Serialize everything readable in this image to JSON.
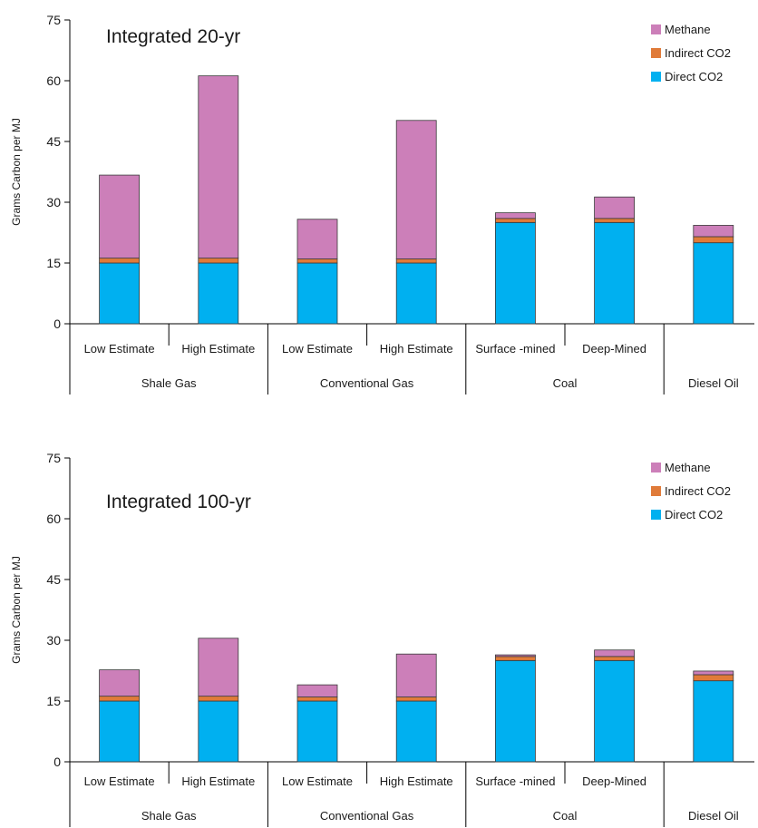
{
  "chart_data": [
    {
      "type": "bar",
      "stacked": true,
      "title": "Integrated 20-yr",
      "ylabel": "Grams Carbon per MJ",
      "xlabel": "",
      "ylim": [
        0,
        75
      ],
      "yticks": [
        0,
        15,
        30,
        45,
        60,
        75
      ],
      "legend_position": "top-right",
      "categories": [
        "Low Estimate",
        "High Estimate",
        "Low Estimate",
        "High Estimate",
        "Surface -mined",
        "Deep-Mined",
        ""
      ],
      "groups": [
        {
          "label": "Shale Gas",
          "span": 2
        },
        {
          "label": "Conventional Gas",
          "span": 2
        },
        {
          "label": "Coal",
          "span": 2
        },
        {
          "label": "Diesel Oil",
          "span": 1
        }
      ],
      "series": [
        {
          "name": "Direct CO2",
          "color": "#00b0f0",
          "values": [
            15,
            15,
            15,
            15,
            25,
            25,
            20
          ]
        },
        {
          "name": "Indirect CO2",
          "color": "#e07b39",
          "values": [
            1.2,
            1.2,
            1.0,
            1.0,
            1.0,
            1.0,
            1.5
          ]
        },
        {
          "name": "Methane",
          "color": "#cc7fb9",
          "values": [
            20.5,
            45.0,
            9.8,
            34.2,
            1.4,
            5.3,
            2.8
          ]
        }
      ]
    },
    {
      "type": "bar",
      "stacked": true,
      "title": "Integrated 100-yr",
      "ylabel": "Grams Carbon per MJ",
      "xlabel": "",
      "ylim": [
        0,
        75
      ],
      "yticks": [
        0,
        15,
        30,
        45,
        60,
        75
      ],
      "legend_position": "top-right",
      "categories": [
        "Low Estimate",
        "High Estimate",
        "Low Estimate",
        "High Estimate",
        "Surface -mined",
        "Deep-Mined",
        ""
      ],
      "groups": [
        {
          "label": "Shale Gas",
          "span": 2
        },
        {
          "label": "Conventional Gas",
          "span": 2
        },
        {
          "label": "Coal",
          "span": 2
        },
        {
          "label": "Diesel Oil",
          "span": 1
        }
      ],
      "series": [
        {
          "name": "Direct CO2",
          "color": "#00b0f0",
          "values": [
            15,
            15,
            15,
            15,
            25,
            25,
            20
          ]
        },
        {
          "name": "Indirect CO2",
          "color": "#e07b39",
          "values": [
            1.2,
            1.2,
            1.0,
            1.0,
            1.0,
            1.0,
            1.5
          ]
        },
        {
          "name": "Methane",
          "color": "#cc7fb9",
          "values": [
            6.5,
            14.3,
            3.0,
            10.6,
            0.4,
            1.6,
            0.9
          ]
        }
      ]
    }
  ]
}
